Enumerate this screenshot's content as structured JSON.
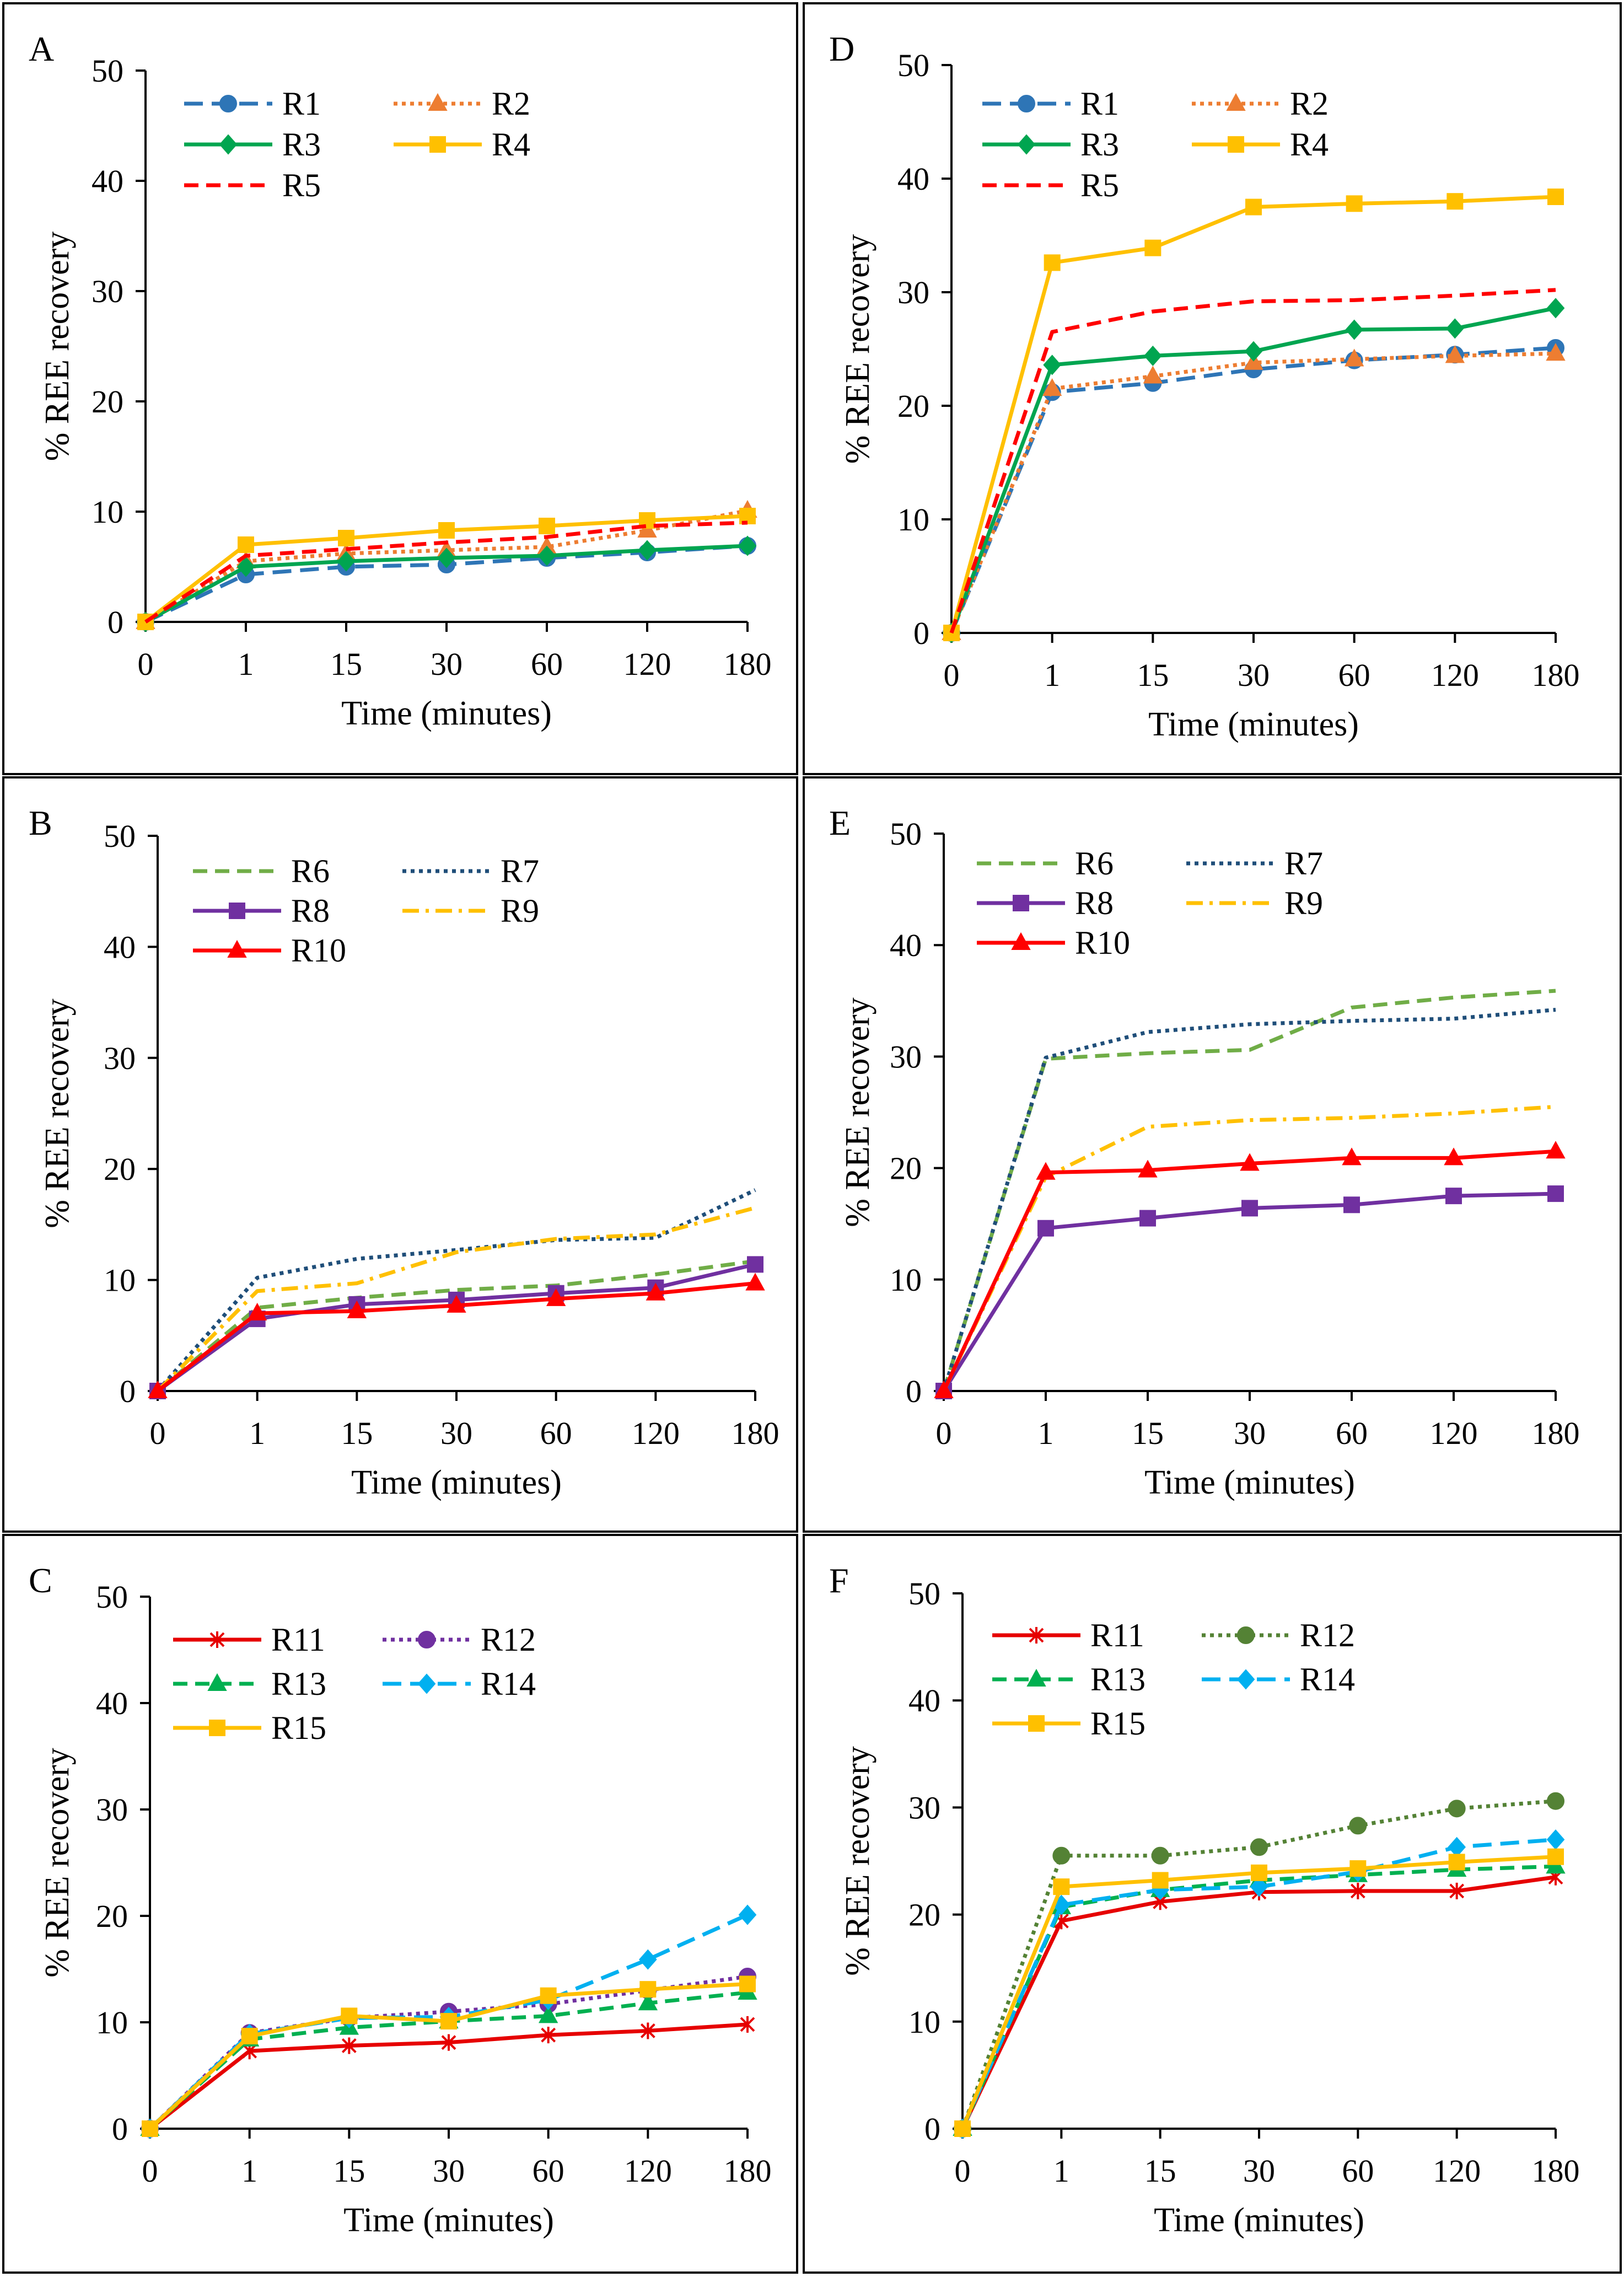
{
  "figure": {
    "description_free": true
  },
  "colors": {
    "blue": "#2E75B6",
    "orange": "#ED7D31",
    "green": "#00A550",
    "yellow": "#FFC000",
    "red": "#FF0000",
    "darkgreen": "#70AD47",
    "darkblue": "#1F4E79",
    "purple": "#7030A0",
    "gold": "#FFC000",
    "brightred": "#E60000",
    "violet": "#7030A0",
    "green2": "#00B050",
    "cyan": "#00B0F0",
    "amber": "#FFC000",
    "olive": "#548235"
  },
  "chart_data": [
    {
      "panel": "A",
      "type": "line",
      "categories": [
        "0",
        "1",
        "15",
        "30",
        "60",
        "120",
        "180"
      ],
      "xlabel": "Time (minutes)",
      "ylabel": "% REE recovery",
      "ylim": [
        0,
        50
      ],
      "yticks": [
        "0",
        "10",
        "20",
        "30",
        "40",
        "50"
      ],
      "legend_cols": 2,
      "series": [
        {
          "name": "R1",
          "values": [
            0,
            4.3,
            5.0,
            5.2,
            5.8,
            6.3,
            6.9
          ],
          "color": "#2E75B6",
          "dash": "long",
          "marker": "circle"
        },
        {
          "name": "R2",
          "values": [
            0,
            5.5,
            6.2,
            6.5,
            6.8,
            8.3,
            10.1
          ],
          "color": "#ED7D31",
          "dash": "dot",
          "marker": "triangle"
        },
        {
          "name": "R3",
          "values": [
            0,
            5.0,
            5.5,
            5.8,
            6.0,
            6.5,
            6.9
          ],
          "color": "#00A550",
          "dash": "solid",
          "marker": "diamond"
        },
        {
          "name": "R4",
          "values": [
            0,
            7.0,
            7.6,
            8.3,
            8.7,
            9.2,
            9.6
          ],
          "color": "#FFC000",
          "dash": "solid",
          "marker": "square"
        },
        {
          "name": "R5",
          "values": [
            0,
            6.0,
            6.6,
            7.2,
            7.7,
            8.7,
            9.0
          ],
          "color": "#FF0000",
          "dash": "dash",
          "marker": "none"
        }
      ]
    },
    {
      "panel": "D",
      "type": "line",
      "categories": [
        "0",
        "1",
        "15",
        "30",
        "60",
        "120",
        "180"
      ],
      "xlabel": "Time (minutes)",
      "ylabel": "% REE recovery",
      "ylim": [
        0,
        50
      ],
      "yticks": [
        "0",
        "10",
        "20",
        "30",
        "40",
        "50"
      ],
      "legend_cols": 2,
      "series": [
        {
          "name": "R1",
          "values": [
            0,
            21.2,
            22.0,
            23.2,
            24.0,
            24.5,
            25.1
          ],
          "color": "#2E75B6",
          "dash": "long",
          "marker": "circle"
        },
        {
          "name": "R2",
          "values": [
            0,
            21.5,
            22.6,
            23.8,
            24.1,
            24.4,
            24.6
          ],
          "color": "#ED7D31",
          "dash": "dot",
          "marker": "triangle"
        },
        {
          "name": "R3",
          "values": [
            0,
            23.6,
            24.4,
            24.8,
            26.7,
            26.8,
            28.6
          ],
          "color": "#00A550",
          "dash": "solid",
          "marker": "diamond"
        },
        {
          "name": "R4",
          "values": [
            0,
            32.6,
            33.9,
            37.5,
            37.8,
            38.0,
            38.4
          ],
          "color": "#FFC000",
          "dash": "solid",
          "marker": "square"
        },
        {
          "name": "R5",
          "values": [
            0,
            26.5,
            28.3,
            29.2,
            29.3,
            29.7,
            30.2
          ],
          "color": "#FF0000",
          "dash": "dash",
          "marker": "none"
        }
      ]
    },
    {
      "panel": "B",
      "type": "line",
      "categories": [
        "0",
        "1",
        "15",
        "30",
        "60",
        "120",
        "180"
      ],
      "xlabel": "Time (minutes)",
      "ylabel": "% REE recovery",
      "ylim": [
        0,
        50
      ],
      "yticks": [
        "0",
        "10",
        "20",
        "30",
        "40",
        "50"
      ],
      "legend_cols": 2,
      "series": [
        {
          "name": "R6",
          "values": [
            0,
            7.5,
            8.4,
            9.1,
            9.5,
            10.5,
            11.7
          ],
          "color": "#70AD47",
          "dash": "dash",
          "marker": "none"
        },
        {
          "name": "R7",
          "values": [
            0,
            10.2,
            11.9,
            12.7,
            13.6,
            13.8,
            18.1
          ],
          "color": "#1F4E79",
          "dash": "dot",
          "marker": "none"
        },
        {
          "name": "R8",
          "values": [
            0,
            6.5,
            7.8,
            8.2,
            8.8,
            9.3,
            11.4
          ],
          "color": "#7030A0",
          "dash": "solid",
          "marker": "square"
        },
        {
          "name": "R9",
          "values": [
            0,
            9.0,
            9.7,
            12.5,
            13.7,
            14.1,
            16.5
          ],
          "color": "#FFC000",
          "dash": "dashdot",
          "marker": "none"
        },
        {
          "name": "R10",
          "values": [
            0,
            7.0,
            7.2,
            7.7,
            8.3,
            8.8,
            9.7
          ],
          "color": "#FF0000",
          "dash": "solid",
          "marker": "triangle"
        }
      ]
    },
    {
      "panel": "E",
      "type": "line",
      "categories": [
        "0",
        "1",
        "15",
        "30",
        "60",
        "120",
        "180"
      ],
      "xlabel": "Time (minutes)",
      "ylabel": "% REE recovery",
      "ylim": [
        0,
        50
      ],
      "yticks": [
        "0",
        "10",
        "20",
        "30",
        "40",
        "50"
      ],
      "legend_cols": 2,
      "series": [
        {
          "name": "R6",
          "values": [
            0,
            29.8,
            30.3,
            30.6,
            34.4,
            35.3,
            35.9
          ],
          "color": "#70AD47",
          "dash": "dash",
          "marker": "none"
        },
        {
          "name": "R7",
          "values": [
            0,
            29.9,
            32.2,
            32.9,
            33.2,
            33.4,
            34.2
          ],
          "color": "#1F4E79",
          "dash": "dot",
          "marker": "none"
        },
        {
          "name": "R8",
          "values": [
            0,
            14.6,
            15.5,
            16.4,
            16.7,
            17.5,
            17.7
          ],
          "color": "#7030A0",
          "dash": "solid",
          "marker": "square"
        },
        {
          "name": "R9",
          "values": [
            0,
            19.2,
            23.7,
            24.3,
            24.5,
            24.9,
            25.5
          ],
          "color": "#FFC000",
          "dash": "dashdot",
          "marker": "none"
        },
        {
          "name": "R10",
          "values": [
            0,
            19.6,
            19.8,
            20.4,
            20.9,
            20.9,
            21.5
          ],
          "color": "#FF0000",
          "dash": "solid",
          "marker": "triangle"
        }
      ]
    },
    {
      "panel": "C",
      "type": "line",
      "categories": [
        "0",
        "1",
        "15",
        "30",
        "60",
        "120",
        "180"
      ],
      "xlabel": "Time (minutes)",
      "ylabel": "% REE recovery",
      "ylim": [
        0,
        50
      ],
      "yticks": [
        "0",
        "10",
        "20",
        "30",
        "40",
        "50"
      ],
      "legend_cols": 2,
      "series": [
        {
          "name": "R11",
          "values": [
            0,
            7.3,
            7.8,
            8.1,
            8.8,
            9.2,
            9.8
          ],
          "color": "#E60000",
          "dash": "solid",
          "marker": "star"
        },
        {
          "name": "R12",
          "values": [
            0,
            9.0,
            10.4,
            11.0,
            11.7,
            13.0,
            14.3
          ],
          "color": "#7030A0",
          "dash": "dot",
          "marker": "circle"
        },
        {
          "name": "R13",
          "values": [
            0,
            8.4,
            9.5,
            10.1,
            10.6,
            11.8,
            12.8
          ],
          "color": "#00B050",
          "dash": "dash",
          "marker": "triangle"
        },
        {
          "name": "R14",
          "values": [
            0,
            8.9,
            10.4,
            10.5,
            12.1,
            15.9,
            20.1
          ],
          "color": "#00B0F0",
          "dash": "long",
          "marker": "diamond"
        },
        {
          "name": "R15",
          "values": [
            0,
            8.7,
            10.6,
            10.1,
            12.5,
            13.1,
            13.6
          ],
          "color": "#FFC000",
          "dash": "solid",
          "marker": "square"
        }
      ]
    },
    {
      "panel": "F",
      "type": "line",
      "categories": [
        "0",
        "1",
        "15",
        "30",
        "60",
        "120",
        "180"
      ],
      "xlabel": "Time (minutes)",
      "ylabel": "% REE recovery",
      "ylim": [
        0,
        50
      ],
      "yticks": [
        "0",
        "10",
        "20",
        "30",
        "40",
        "50"
      ],
      "legend_cols": 2,
      "series": [
        {
          "name": "R11",
          "values": [
            0,
            19.4,
            21.2,
            22.1,
            22.2,
            22.2,
            23.5
          ],
          "color": "#E60000",
          "dash": "solid",
          "marker": "star"
        },
        {
          "name": "R12",
          "values": [
            0,
            25.5,
            25.5,
            26.3,
            28.3,
            29.9,
            30.6
          ],
          "color": "#548235",
          "dash": "dot",
          "marker": "circle"
        },
        {
          "name": "R13",
          "values": [
            0,
            20.7,
            22.3,
            23.2,
            23.7,
            24.2,
            24.5
          ],
          "color": "#00B050",
          "dash": "dash",
          "marker": "triangle"
        },
        {
          "name": "R14",
          "values": [
            0,
            20.9,
            22.3,
            22.6,
            24.0,
            26.3,
            27.0
          ],
          "color": "#00B0F0",
          "dash": "long",
          "marker": "diamond"
        },
        {
          "name": "R15",
          "values": [
            0,
            22.6,
            23.2,
            23.9,
            24.3,
            24.9,
            25.4
          ],
          "color": "#FFC000",
          "dash": "solid",
          "marker": "square"
        }
      ]
    }
  ]
}
